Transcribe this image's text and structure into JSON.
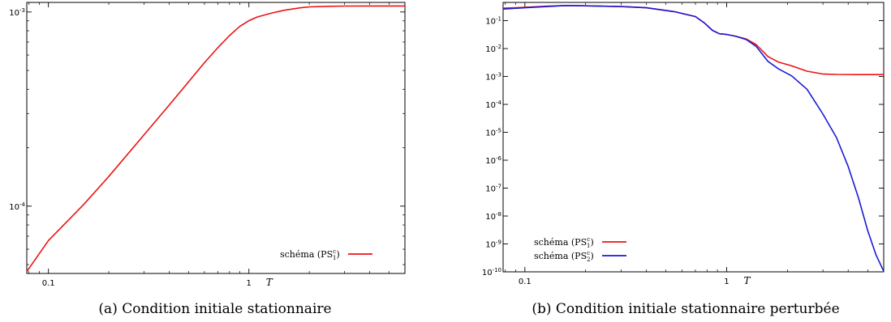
{
  "figure": {
    "caption_a": "(a) Condition initiale stationnaire",
    "caption_b": "(b) Condition initiale stationnaire perturbée"
  },
  "chart_data": [
    {
      "type": "line",
      "title": "",
      "xlabel": "T",
      "ylabel": "",
      "xscale": "log",
      "yscale": "log",
      "xlim": [
        0.078,
        6.0
      ],
      "ylim": [
        4.5e-05,
        0.00112
      ],
      "x_ticks": [
        {
          "value": 0.1,
          "label": "0.1"
        },
        {
          "value": 1,
          "label": "1"
        }
      ],
      "y_ticks": [
        {
          "value": 0.001,
          "base": "10",
          "exp": "-3"
        },
        {
          "value": 0.0001,
          "base": "10",
          "exp": "-4"
        }
      ],
      "legend_position": "bottom-right",
      "series": [
        {
          "name": "schéma (PS",
          "name_sub": "1",
          "name_sup": "c",
          "name_end": ")",
          "color": "#ee1111",
          "x": [
            0.078,
            0.1,
            0.15,
            0.2,
            0.3,
            0.4,
            0.5,
            0.6,
            0.7,
            0.8,
            0.9,
            1.0,
            1.1,
            1.3,
            1.5,
            1.8,
            2.0,
            2.5,
            3.0,
            4.0,
            6.0
          ],
          "y": [
            4.6e-05,
            6.65e-05,
            0.000102,
            0.000142,
            0.000233,
            0.000331,
            0.000437,
            0.000548,
            0.000655,
            0.000756,
            0.000842,
            0.000902,
            0.000942,
            0.000988,
            0.00102,
            0.00105,
            0.001062,
            0.00107,
            0.001073,
            0.001074,
            0.001074
          ]
        }
      ]
    },
    {
      "type": "line",
      "title": "",
      "xlabel": "T",
      "ylabel": "",
      "xscale": "log",
      "yscale": "log",
      "xlim": [
        0.078,
        6.0
      ],
      "ylim": [
        1e-10,
        0.45
      ],
      "x_ticks": [
        {
          "value": 0.1,
          "label": "0.1"
        },
        {
          "value": 1,
          "label": "1"
        }
      ],
      "y_ticks": [
        {
          "value": 0.1,
          "base": "10",
          "exp": "-1"
        },
        {
          "value": 0.01,
          "base": "10",
          "exp": "-2"
        },
        {
          "value": 0.001,
          "base": "10",
          "exp": "-3"
        },
        {
          "value": 0.0001,
          "base": "10",
          "exp": "-4"
        },
        {
          "value": 1e-05,
          "base": "10",
          "exp": "-5"
        },
        {
          "value": 1e-06,
          "base": "10",
          "exp": "-6"
        },
        {
          "value": 1e-07,
          "base": "10",
          "exp": "-7"
        },
        {
          "value": 1e-08,
          "base": "10",
          "exp": "-8"
        },
        {
          "value": 1e-09,
          "base": "10",
          "exp": "-9"
        },
        {
          "value": 1e-10,
          "base": "10",
          "exp": "-10"
        }
      ],
      "legend_position": "bottom-left",
      "series": [
        {
          "name": "schéma (PS",
          "name_sub": "1",
          "name_sup": "c",
          "name_end": ")",
          "color": "#ee1111",
          "x": [
            0.078,
            0.1,
            0.13,
            0.16,
            0.2,
            0.3,
            0.4,
            0.55,
            0.7,
            0.78,
            0.85,
            0.92,
            1.0,
            1.1,
            1.25,
            1.4,
            1.6,
            1.8,
            2.1,
            2.5,
            3.0,
            3.5,
            4.5,
            6.0
          ],
          "y": [
            0.28,
            0.3,
            0.33,
            0.35,
            0.34,
            0.32,
            0.29,
            0.21,
            0.14,
            0.08,
            0.045,
            0.034,
            0.032,
            0.028,
            0.022,
            0.014,
            0.0052,
            0.0033,
            0.0024,
            0.00155,
            0.00122,
            0.00118,
            0.00117,
            0.00117
          ]
        },
        {
          "name": "schéma (PS",
          "name_sub": "2",
          "name_sup": "c",
          "name_end": ")",
          "color": "#1a1ad6",
          "x": [
            0.078,
            0.1,
            0.13,
            0.16,
            0.2,
            0.3,
            0.4,
            0.55,
            0.7,
            0.78,
            0.85,
            0.92,
            1.0,
            1.1,
            1.25,
            1.4,
            1.6,
            1.8,
            2.1,
            2.5,
            3.0,
            3.5,
            4.0,
            4.5,
            5.0,
            5.5,
            6.0
          ],
          "y": [
            0.26,
            0.29,
            0.32,
            0.35,
            0.34,
            0.32,
            0.29,
            0.21,
            0.14,
            0.08,
            0.045,
            0.034,
            0.032,
            0.028,
            0.021,
            0.012,
            0.0035,
            0.0019,
            0.00105,
            0.00035,
            4.5e-05,
            6.5e-06,
            6e-07,
            4.5e-08,
            3e-09,
            4e-10,
            1.05e-10
          ]
        }
      ]
    }
  ]
}
